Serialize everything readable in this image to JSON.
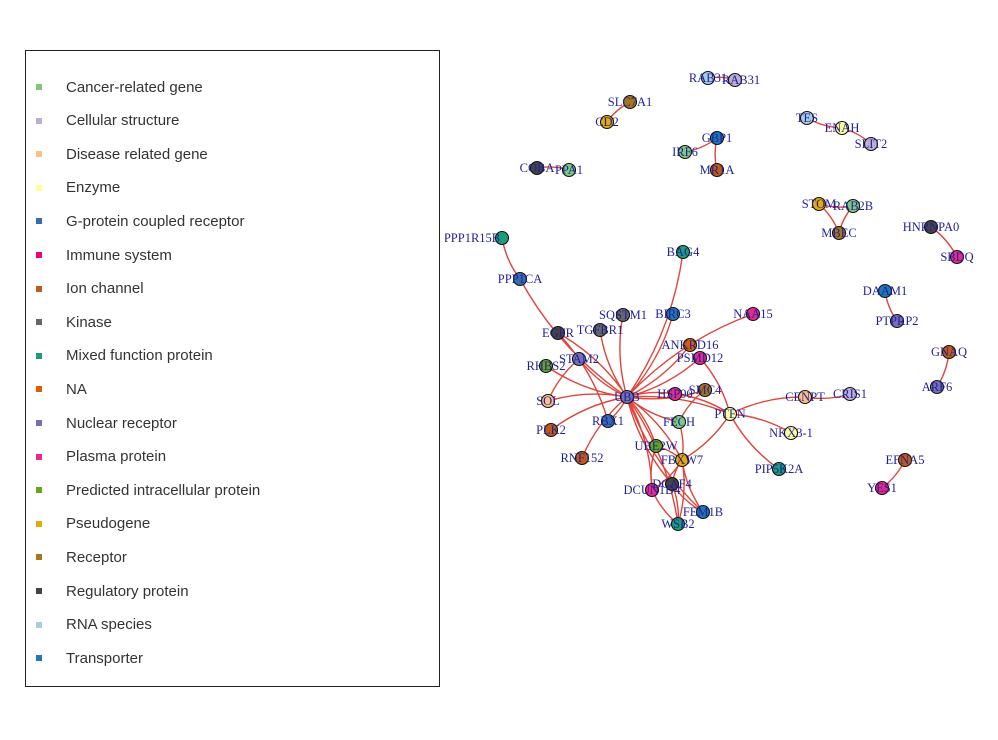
{
  "legend": {
    "items": [
      {
        "label": "Cancer-related gene",
        "color": "#7fc97f"
      },
      {
        "label": "Cellular structure",
        "color": "#beaed4"
      },
      {
        "label": "Disease related gene",
        "color": "#fdc086"
      },
      {
        "label": "Enzyme",
        "color": "#ffff99"
      },
      {
        "label": "G-protein coupled receptor",
        "color": "#386cb0"
      },
      {
        "label": "Immune system",
        "color": "#f0027f"
      },
      {
        "label": "Ion channel",
        "color": "#bf5b17"
      },
      {
        "label": "Kinase",
        "color": "#666666"
      },
      {
        "label": "Mixed function protein",
        "color": "#1b9e77"
      },
      {
        "label": "NA",
        "color": "#d95f02"
      },
      {
        "label": "Nuclear receptor",
        "color": "#7570b3"
      },
      {
        "label": "Plasma protein",
        "color": "#e7298a"
      },
      {
        "label": "Predicted intracellular protein",
        "color": "#66a61e"
      },
      {
        "label": "Pseudogene",
        "color": "#e6ab02"
      },
      {
        "label": "Receptor",
        "color": "#a6761d"
      },
      {
        "label": "Regulatory protein",
        "color": "#444444"
      },
      {
        "label": "RNA species",
        "color": "#a6cee3"
      },
      {
        "label": "Transporter",
        "color": "#1f78b4"
      }
    ]
  },
  "network": {
    "nodes": [
      {
        "label": "RAB31",
        "color": "#a6cee3"
      },
      {
        "label": "RAB31",
        "color": "#beaed4"
      },
      {
        "label": "SLC7A1",
        "color": "#a6761d"
      },
      {
        "label": "CD2",
        "color": "#e6ab02"
      },
      {
        "label": "GBP1",
        "color": "#1f78b4"
      },
      {
        "label": "IRF6",
        "color": "#7fc97f"
      },
      {
        "label": "MR1A",
        "color": "#bf5b17"
      },
      {
        "label": "COBA",
        "color": "#444444"
      },
      {
        "label": "PPA1",
        "color": "#7fc97f"
      },
      {
        "label": "TES",
        "color": "#a6cee3"
      },
      {
        "label": "ENAH",
        "color": "#ffff99"
      },
      {
        "label": "SLIT2",
        "color": "#beaed4"
      },
      {
        "label": "STOM",
        "color": "#e6ab02"
      },
      {
        "label": "RAB2B",
        "color": "#7fc97f"
      },
      {
        "label": "MBEC",
        "color": "#a6761d"
      },
      {
        "label": "HNRNPA0",
        "color": "#444444"
      },
      {
        "label": "SBDQ",
        "color": "#e7298a"
      },
      {
        "label": "PPP1R15B",
        "color": "#1b9e77"
      },
      {
        "label": "PPP1CA",
        "color": "#386cb0"
      },
      {
        "label": "BAG4",
        "color": "#1b9e77"
      },
      {
        "label": "DAAM1",
        "color": "#1f78b4"
      },
      {
        "label": "PTPRP2",
        "color": "#7570b3"
      },
      {
        "label": "GNAQ",
        "color": "#bf5b17"
      },
      {
        "label": "ARF6",
        "color": "#7570b3"
      },
      {
        "label": "SQSTM1",
        "color": "#666666"
      },
      {
        "label": "BIRC3",
        "color": "#1f78b4"
      },
      {
        "label": "TGFBR1",
        "color": "#666666"
      },
      {
        "label": "EGFR",
        "color": "#444444"
      },
      {
        "label": "NAA15",
        "color": "#e7298a"
      },
      {
        "label": "ANKRD16",
        "color": "#d95f02"
      },
      {
        "label": "STAM2",
        "color": "#7570b3"
      },
      {
        "label": "PSMD12",
        "color": "#e7298a"
      },
      {
        "label": "RHBS2",
        "color": "#66a61e"
      },
      {
        "label": "SMC4",
        "color": "#a6761d"
      },
      {
        "label": "UBB",
        "color": "#7570b3"
      },
      {
        "label": "HSP90",
        "color": "#e7298a"
      },
      {
        "label": "SOL",
        "color": "#fdc086"
      },
      {
        "label": "CENPT",
        "color": "#fdc086"
      },
      {
        "label": "CRIS1",
        "color": "#beaed4"
      },
      {
        "label": "RBX1",
        "color": "#386cb0"
      },
      {
        "label": "FECH",
        "color": "#7fc97f"
      },
      {
        "label": "PTEN",
        "color": "#ffff99"
      },
      {
        "label": "PLK2",
        "color": "#bf5b17"
      },
      {
        "label": "NKX3-1",
        "color": "#ffff99"
      },
      {
        "label": "UBE2W",
        "color": "#66a61e"
      },
      {
        "label": "RNF152",
        "color": "#bf5b17"
      },
      {
        "label": "PIP5K2A",
        "color": "#1b9e77"
      },
      {
        "label": "FBXW7",
        "color": "#e6ab02"
      },
      {
        "label": "EFNA5",
        "color": "#bf5b17"
      },
      {
        "label": "DCAF4",
        "color": "#444444"
      },
      {
        "label": "YES1",
        "color": "#e7298a"
      },
      {
        "label": "DCUN1D4",
        "color": "#e7298a"
      },
      {
        "label": "FEM1B",
        "color": "#1f78b4"
      },
      {
        "label": "WSB2",
        "color": "#1b9e77"
      }
    ],
    "edge_color": "#e0443a"
  }
}
